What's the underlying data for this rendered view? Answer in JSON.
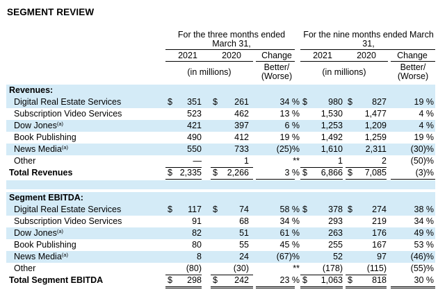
{
  "title": "SEGMENT REVIEW",
  "header": {
    "three_months": "For the three months ended March 31,",
    "nine_months": "For the nine months ended March 31,",
    "year_current": "2021",
    "year_prior": "2020",
    "change_label": "Change",
    "in_millions": "(in millions)",
    "better_worse": "Better/ (Worse)"
  },
  "revenues": {
    "section_label": "Revenues:",
    "rows": [
      {
        "label": "Digital Real Estate Services",
        "note": "",
        "q21": "351",
        "q20": "261",
        "qchg": "34 %",
        "n21": "980",
        "n20": "827",
        "nchg": "19 %",
        "dollar": true
      },
      {
        "label": "Subscription Video Services",
        "note": "",
        "q21": "523",
        "q20": "462",
        "qchg": "13 %",
        "n21": "1,530",
        "n20": "1,477",
        "nchg": "4 %",
        "dollar": false
      },
      {
        "label": "Dow Jones",
        "note": "(a)",
        "q21": "421",
        "q20": "397",
        "qchg": "6 %",
        "n21": "1,253",
        "n20": "1,209",
        "nchg": "4 %",
        "dollar": false
      },
      {
        "label": "Book Publishing",
        "note": "",
        "q21": "490",
        "q20": "412",
        "qchg": "19 %",
        "n21": "1,492",
        "n20": "1,259",
        "nchg": "19 %",
        "dollar": false
      },
      {
        "label": "News Media",
        "note": "(a)",
        "q21": "550",
        "q20": "733",
        "qchg": "(25)%",
        "n21": "1,610",
        "n20": "2,311",
        "nchg": "(30)%",
        "dollar": false
      },
      {
        "label": "Other",
        "note": "",
        "q21": "—",
        "q20": "1",
        "qchg": "**",
        "n21": "1",
        "n20": "2",
        "nchg": "(50)%",
        "dollar": false
      }
    ],
    "total": {
      "label": "Total Revenues",
      "q21": "2,335",
      "q20": "2,266",
      "qchg": "3 %",
      "n21": "6,866",
      "n20": "7,085",
      "nchg": "(3)%"
    }
  },
  "ebitda": {
    "section_label": "Segment EBITDA:",
    "rows": [
      {
        "label": "Digital Real Estate Services",
        "note": "",
        "q21": "117",
        "q20": "74",
        "qchg": "58 %",
        "n21": "378",
        "n20": "274",
        "nchg": "38 %",
        "dollar": true
      },
      {
        "label": "Subscription Video Services",
        "note": "",
        "q21": "91",
        "q20": "68",
        "qchg": "34 %",
        "n21": "293",
        "n20": "219",
        "nchg": "34 %",
        "dollar": false
      },
      {
        "label": "Dow Jones",
        "note": "(a)",
        "q21": "82",
        "q20": "51",
        "qchg": "61 %",
        "n21": "263",
        "n20": "176",
        "nchg": "49 %",
        "dollar": false
      },
      {
        "label": "Book Publishing",
        "note": "",
        "q21": "80",
        "q20": "55",
        "qchg": "45 %",
        "n21": "255",
        "n20": "167",
        "nchg": "53 %",
        "dollar": false
      },
      {
        "label": "News Media",
        "note": "(a)",
        "q21": "8",
        "q20": "24",
        "qchg": "(67)%",
        "n21": "52",
        "n20": "97",
        "nchg": "(46)%",
        "dollar": false
      },
      {
        "label": "Other",
        "note": "",
        "q21": "(80)",
        "q20": "(30)",
        "qchg": "**",
        "n21": "(178)",
        "n20": "(115)",
        "nchg": "(55)%",
        "dollar": false
      }
    ],
    "total": {
      "label": "Total Segment EBITDA",
      "q21": "298",
      "q20": "242",
      "qchg": "23 %",
      "n21": "1,063",
      "n20": "818",
      "nchg": "30 %"
    }
  },
  "dollar_sign": "$",
  "colors": {
    "band": "#d4ebf7",
    "text": "#000000"
  }
}
